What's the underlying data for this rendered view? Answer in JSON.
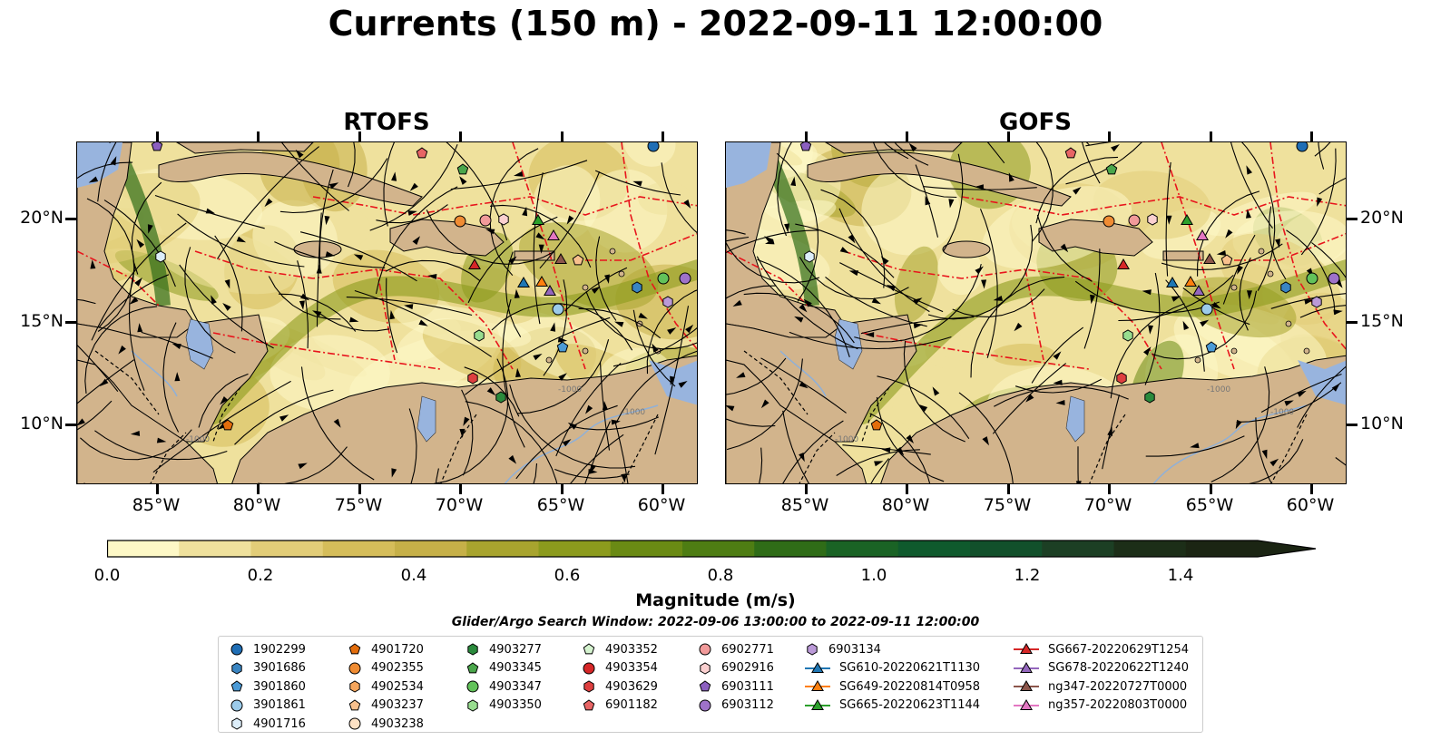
{
  "title": "Currents (150 m) - 2022-09-11 12:00:00",
  "panels": [
    {
      "title": "RTOFS"
    },
    {
      "title": "GOFS"
    }
  ],
  "lat_labels": [
    "20°N",
    "15°N",
    "10°N"
  ],
  "lon_labels": [
    "85°W",
    "80°W",
    "75°W",
    "70°W",
    "65°W",
    "60°W"
  ],
  "colorbar": {
    "title": "Magnitude (m/s)",
    "ticks": [
      "0.0",
      "0.2",
      "0.4",
      "0.6",
      "0.8",
      "1.0",
      "1.2",
      "1.4"
    ],
    "colors": [
      "#fdf8c6",
      "#efe19d",
      "#e2cd78",
      "#d5bd5a",
      "#c6b048",
      "#a8a42e",
      "#8c9b1d",
      "#6a8a14",
      "#4e7d13",
      "#2f6c17",
      "#1a6325",
      "#0f5a2d",
      "#12502b",
      "#1c3f24",
      "#1c2e18",
      "#1b2513"
    ],
    "extend": "max"
  },
  "search_window": "Glider/Argo Search Window: 2022-09-06 13:00:00 to 2022-09-11 12:00:00",
  "legend": {
    "columns": [
      [
        {
          "label": "1902299",
          "marker": "circle",
          "color": "#1f6eb5"
        },
        {
          "label": "3901686",
          "marker": "hexagon",
          "color": "#3a85c2"
        },
        {
          "label": "3901860",
          "marker": "pentagon",
          "color": "#4b9ad6"
        },
        {
          "label": "3901861",
          "marker": "circle",
          "color": "#9ccbea"
        },
        {
          "label": "4901716",
          "marker": "hexagon",
          "color": "#ddeefa"
        }
      ],
      [
        {
          "label": "4901720",
          "marker": "pentagon",
          "color": "#e36d0c"
        },
        {
          "label": "4902355",
          "marker": "circle",
          "color": "#f08c33"
        },
        {
          "label": "4902534",
          "marker": "hexagon",
          "color": "#f5a55c"
        },
        {
          "label": "4903237",
          "marker": "pentagon",
          "color": "#f8c08d"
        },
        {
          "label": "4903238",
          "marker": "circle",
          "color": "#fde1c4"
        }
      ],
      [
        {
          "label": "4903277",
          "marker": "hexagon",
          "color": "#2a8a3c"
        },
        {
          "label": "4903345",
          "marker": "pentagon",
          "color": "#4aa64b"
        },
        {
          "label": "4903347",
          "marker": "circle",
          "color": "#62c25a"
        },
        {
          "label": "4903350",
          "marker": "hexagon",
          "color": "#98dd8f"
        }
      ],
      [
        {
          "label": "4903352",
          "marker": "pentagon",
          "color": "#d5f3cf"
        },
        {
          "label": "4903354",
          "marker": "circle",
          "color": "#d62728"
        },
        {
          "label": "4903629",
          "marker": "hexagon",
          "color": "#de3f3f"
        },
        {
          "label": "6901182",
          "marker": "pentagon",
          "color": "#e86565"
        }
      ],
      [
        {
          "label": "6902771",
          "marker": "circle",
          "color": "#f19a9a"
        },
        {
          "label": "6902916",
          "marker": "hexagon",
          "color": "#fbd0d0"
        },
        {
          "label": "6903111",
          "marker": "pentagon",
          "color": "#8b5fbf"
        },
        {
          "label": "6903112",
          "marker": "circle",
          "color": "#9e72c9"
        }
      ],
      [
        {
          "label": "6903134",
          "marker": "hexagon",
          "color": "#bb9ad8"
        },
        {
          "label": "SG610-20220621T1130",
          "marker": "triangle-line",
          "color": "#1f77b4"
        },
        {
          "label": "SG649-20220814T0958",
          "marker": "triangle-line",
          "color": "#ff7f0e"
        },
        {
          "label": "SG665-20220623T1144",
          "marker": "triangle-line",
          "color": "#2ca02c"
        }
      ],
      [
        {
          "label": "SG667-20220629T1254",
          "marker": "triangle-line",
          "color": "#d62728"
        },
        {
          "label": "SG678-20220622T1240",
          "marker": "triangle-line",
          "color": "#9467bd"
        },
        {
          "label": "ng347-20220727T0000",
          "marker": "triangle-line",
          "color": "#8c564b"
        },
        {
          "label": "ng357-20220803T0000",
          "marker": "triangle-line",
          "color": "#e377c2"
        }
      ]
    ]
  },
  "map_colors": {
    "land": "#d2b48c",
    "water": "#98b4de",
    "eez": "#e8141c",
    "stream": "#000000"
  }
}
